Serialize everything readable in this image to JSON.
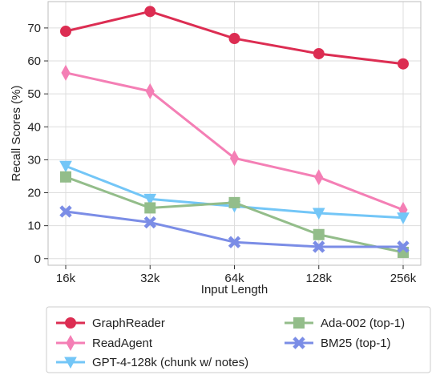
{
  "chart_data": {
    "type": "line",
    "xlabel": "Input Length",
    "ylabel": "Recall Scores (%)",
    "categories": [
      "16k",
      "32k",
      "64k",
      "128k",
      "256k"
    ],
    "ylim": [
      -2,
      78
    ],
    "yticks": [
      0,
      10,
      20,
      30,
      40,
      50,
      60,
      70
    ],
    "grid": true,
    "legend_position": "bottom-outside",
    "series": [
      {
        "name": "GraphReader",
        "values": [
          69,
          75,
          66.8,
          62.2,
          59.1
        ],
        "color": "#dc2d52",
        "marker": "circle"
      },
      {
        "name": "ReadAgent",
        "values": [
          56.4,
          50.8,
          30.5,
          24.7,
          14.8
        ],
        "color": "#f47fb5",
        "marker": "thin-diamond"
      },
      {
        "name": "GPT-4-128k (chunk w/ notes)",
        "values": [
          28.1,
          18.1,
          15.9,
          13.8,
          12.4
        ],
        "color": "#73c6f7",
        "marker": "triangle-down"
      },
      {
        "name": "Ada-002 (top-1)",
        "values": [
          24.8,
          15.4,
          17,
          7.3,
          1.9
        ],
        "color": "#93bd8a",
        "marker": "square"
      },
      {
        "name": "BM25 (top-1)",
        "values": [
          14.3,
          11,
          5,
          3.6,
          3.6
        ],
        "color": "#7b8de6",
        "marker": "x-filled"
      }
    ]
  }
}
